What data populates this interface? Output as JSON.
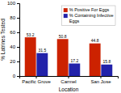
{
  "chart_data": {
    "type": "bar",
    "categories": [
      "Pacific Grove",
      "Carmel",
      "San Jose"
    ],
    "series": [
      {
        "name": "% Positive For Eggs",
        "color": "#cc2200",
        "values": [
          53.2,
          50.8,
          44.8
        ]
      },
      {
        "name": "% Containing Infective\nEggs",
        "color": "#2222aa",
        "values": [
          31.5,
          17.2,
          15.8
        ]
      }
    ],
    "xlabel": "Location",
    "ylabel": "% Latrines Tested",
    "ylim": [
      0,
      100
    ],
    "yticks": [
      0,
      20,
      40,
      60,
      80,
      100
    ],
    "data_labels": true,
    "legend": "upper right",
    "grid": false
  }
}
